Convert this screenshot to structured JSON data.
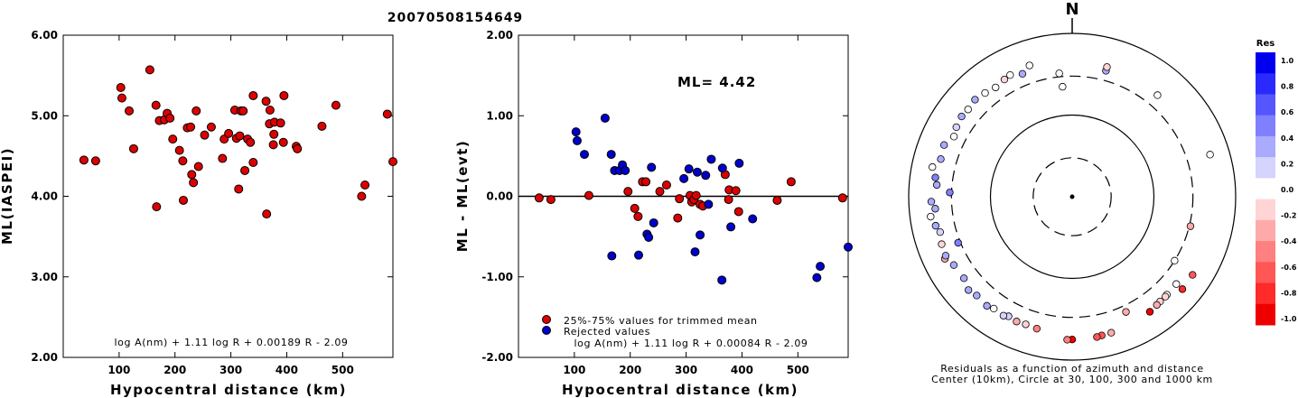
{
  "title": "20070508154649",
  "chart_data": [
    {
      "type": "scatter",
      "xlabel": "Hypocentral distance (km)",
      "ylabel": "ML(IASPEI)",
      "xlim": [
        0,
        590
      ],
      "ylim": [
        2.0,
        6.0
      ],
      "x_ticks": [
        100,
        200,
        300,
        400,
        500
      ],
      "y_ticks": [
        "2.00",
        "3.00",
        "4.00",
        "5.00",
        "6.00"
      ],
      "formula": "log A(nm) + 1.11 log R + 0.00189 R - 2.09",
      "series": [
        {
          "color": "#dd0000",
          "points": [
            [
              37,
              4.45
            ],
            [
              58,
              4.44
            ],
            [
              103,
              5.35
            ],
            [
              105,
              5.22
            ],
            [
              118,
              5.06
            ],
            [
              126,
              4.59
            ],
            [
              155,
              5.57
            ],
            [
              167,
              3.87
            ],
            [
              166,
              5.13
            ],
            [
              172,
              4.94
            ],
            [
              181,
              4.95
            ],
            [
              186,
              5.03
            ],
            [
              191,
              4.97
            ],
            [
              196,
              4.71
            ],
            [
              208,
              4.57
            ],
            [
              214,
              4.44
            ],
            [
              215,
              3.95
            ],
            [
              222,
              4.85
            ],
            [
              228,
              4.86
            ],
            [
              230,
              4.27
            ],
            [
              233,
              4.17
            ],
            [
              238,
              5.06
            ],
            [
              242,
              4.37
            ],
            [
              253,
              4.76
            ],
            [
              265,
              4.86
            ],
            [
              285,
              4.47
            ],
            [
              288,
              4.71
            ],
            [
              296,
              4.78
            ],
            [
              307,
              5.07
            ],
            [
              310,
              4.72
            ],
            [
              314,
              4.09
            ],
            [
              316,
              4.75
            ],
            [
              318,
              5.06
            ],
            [
              322,
              5.06
            ],
            [
              325,
              4.32
            ],
            [
              330,
              4.71
            ],
            [
              335,
              4.67
            ],
            [
              340,
              4.42
            ],
            [
              340,
              5.25
            ],
            [
              363,
              5.18
            ],
            [
              364,
              3.78
            ],
            [
              369,
              4.9
            ],
            [
              370,
              5.07
            ],
            [
              376,
              4.64
            ],
            [
              377,
              4.77
            ],
            [
              378,
              4.92
            ],
            [
              389,
              4.91
            ],
            [
              394,
              4.67
            ],
            [
              395,
              5.25
            ],
            [
              417,
              4.62
            ],
            [
              419,
              4.59
            ],
            [
              463,
              4.87
            ],
            [
              488,
              5.13
            ],
            [
              534,
              4.0
            ],
            [
              540,
              4.14
            ],
            [
              580,
              5.02
            ],
            [
              590,
              4.43
            ]
          ]
        }
      ]
    },
    {
      "type": "scatter",
      "xlabel": "Hypocentral distance (km)",
      "ylabel": "ML - ML(evt)",
      "xlim": [
        0,
        590
      ],
      "ylim": [
        -2.0,
        2.0
      ],
      "x_ticks": [
        100,
        200,
        300,
        400,
        500
      ],
      "y_ticks": [
        "-2.00",
        "-1.00",
        "0.00",
        "1.00",
        "2.00"
      ],
      "annotation": "ML= 4.42",
      "reference_line": 0.0,
      "formula": "log A(nm) + 1.11 log R + 0.00084 R - 2.09",
      "series": [
        {
          "name": "25%-75% values for trimmed mean",
          "color": "#dd0000",
          "points": [
            [
              37,
              -0.02
            ],
            [
              58,
              -0.04
            ],
            [
              126,
              0.01
            ],
            [
              196,
              0.06
            ],
            [
              208,
              -0.15
            ],
            [
              214,
              -0.25
            ],
            [
              222,
              0.18
            ],
            [
              228,
              0.18
            ],
            [
              253,
              0.06
            ],
            [
              265,
              0.14
            ],
            [
              285,
              -0.27
            ],
            [
              288,
              -0.03
            ],
            [
              307,
              0.01
            ],
            [
              310,
              -0.07
            ],
            [
              314,
              -0.04
            ],
            [
              318,
              0.01
            ],
            [
              325,
              -0.1
            ],
            [
              330,
              -0.12
            ],
            [
              370,
              0.27
            ],
            [
              376,
              -0.04
            ],
            [
              377,
              0.08
            ],
            [
              389,
              0.07
            ],
            [
              394,
              -0.19
            ],
            [
              463,
              -0.05
            ],
            [
              488,
              0.18
            ],
            [
              580,
              -0.02
            ]
          ]
        },
        {
          "name": "Rejected values",
          "color": "#0000cc",
          "points": [
            [
              103,
              0.8
            ],
            [
              105,
              0.69
            ],
            [
              118,
              0.52
            ],
            [
              155,
              0.97
            ],
            [
              167,
              -0.74
            ],
            [
              166,
              0.52
            ],
            [
              172,
              0.32
            ],
            [
              181,
              0.32
            ],
            [
              186,
              0.39
            ],
            [
              191,
              0.32
            ],
            [
              215,
              -0.73
            ],
            [
              230,
              -0.47
            ],
            [
              233,
              -0.51
            ],
            [
              238,
              0.36
            ],
            [
              242,
              -0.33
            ],
            [
              296,
              0.22
            ],
            [
              305,
              0.34
            ],
            [
              316,
              -0.69
            ],
            [
              320,
              0.3
            ],
            [
              325,
              -0.48
            ],
            [
              335,
              0.26
            ],
            [
              340,
              -0.1
            ],
            [
              345,
              0.46
            ],
            [
              364,
              -1.04
            ],
            [
              365,
              0.35
            ],
            [
              380,
              -0.38
            ],
            [
              395,
              0.41
            ],
            [
              419,
              -0.28
            ],
            [
              534,
              -1.01
            ],
            [
              540,
              -0.87
            ],
            [
              590,
              -0.63
            ]
          ]
        }
      ]
    },
    {
      "type": "scatter",
      "subtype": "polar",
      "north_label": "N",
      "circle_radii_km": [
        30,
        100,
        300,
        1000
      ],
      "caption_line1": "Residuals as a function of azimuth and distance",
      "caption_line2": "Center (10km), Circle at 30, 100, 300 and 1000 km",
      "colorbar_title": "Res",
      "colorbar_ticks": [
        "1.0",
        "0.8",
        "0.6",
        "0.4",
        "0.2",
        "0.0",
        "-0.2",
        "-0.4",
        "-0.6",
        "-0.8",
        "-1.0"
      ],
      "colorbar_colors": [
        "#0000ee",
        "#2a2aff",
        "#5656ff",
        "#8080ff",
        "#aaaaff",
        "#d4d4ff",
        "#ffffff",
        "#ffd4d4",
        "#ffaaaa",
        "#ff8080",
        "#ff5656",
        "#ff2a2a",
        "#ee0000"
      ],
      "note": "Each station: azimuth (degrees clockwise from north), hypocentral distance (km) and magnitude residual (ML - ML(evt)).",
      "stations": [
        {
          "az": 15,
          "dist": 395,
          "res": 0.41
        },
        {
          "az": 15,
          "dist": 440,
          "res": -0.19
        },
        {
          "az": 40,
          "dist": 420,
          "res": -0.02
        },
        {
          "az": 73,
          "dist": 580,
          "res": -0.02
        },
        {
          "az": 104,
          "dist": 310,
          "res": -0.27
        },
        {
          "az": 122,
          "dist": 300,
          "res": 0.01
        },
        {
          "az": 123,
          "dist": 570,
          "res": -0.63
        },
        {
          "az": 130,
          "dist": 460,
          "res": 0.01
        },
        {
          "az": 130,
          "dist": 575,
          "res": -0.87
        },
        {
          "az": 136,
          "dist": 465,
          "res": -0.07
        },
        {
          "az": 137,
          "dist": 470,
          "res": -0.12
        },
        {
          "az": 140,
          "dist": 472,
          "res": -0.1
        },
        {
          "az": 142,
          "dist": 480,
          "res": -0.25
        },
        {
          "az": 146,
          "dist": 500,
          "res": -1.01
        },
        {
          "az": 155,
          "dist": 360,
          "res": -0.38
        },
        {
          "az": 164,
          "dist": 540,
          "res": -0.27
        },
        {
          "az": 168,
          "dist": 545,
          "res": -0.74
        },
        {
          "az": 170,
          "dist": 555,
          "res": -0.73
        },
        {
          "az": 180,
          "dist": 560,
          "res": -1.04
        },
        {
          "az": 182,
          "dist": 565,
          "res": -0.48
        },
        {
          "az": 195,
          "dist": 470,
          "res": -0.51
        },
        {
          "az": 200,
          "dist": 460,
          "res": -0.15
        },
        {
          "az": 204,
          "dist": 470,
          "res": -0.25
        },
        {
          "az": 208,
          "dist": 455,
          "res": 0.18
        },
        {
          "az": 210,
          "dist": 480,
          "res": 0.18
        },
        {
          "az": 215,
          "dist": 470,
          "res": 0.06
        },
        {
          "az": 218,
          "dist": 495,
          "res": 0.33
        },
        {
          "az": 224,
          "dist": 480,
          "res": 0.32
        },
        {
          "az": 228,
          "dist": 510,
          "res": 0.36
        },
        {
          "az": 233,
          "dist": 455,
          "res": 0.3
        },
        {
          "az": 240,
          "dist": 470,
          "res": 0.32
        },
        {
          "az": 244,
          "dist": 540,
          "res": -0.27
        },
        {
          "az": 245,
          "dist": 510,
          "res": 0.26
        },
        {
          "az": 248,
          "dist": 320,
          "res": 0.52
        },
        {
          "az": 250,
          "dist": 500,
          "res": -0.14
        },
        {
          "az": 255,
          "dist": 470,
          "res": 0.22
        },
        {
          "az": 258,
          "dist": 510,
          "res": 0.39
        },
        {
          "az": 262,
          "dist": 560,
          "res": 0.01
        },
        {
          "az": 265,
          "dist": 480,
          "res": 0.34
        },
        {
          "az": 268,
          "dist": 530,
          "res": 0.32
        },
        {
          "az": 272,
          "dist": 315,
          "res": 0.52
        },
        {
          "az": 275,
          "dist": 460,
          "res": 0.39
        },
        {
          "az": 278,
          "dist": 490,
          "res": 0.46
        },
        {
          "az": 282,
          "dist": 560,
          "res": 0.01
        },
        {
          "az": 286,
          "dist": 470,
          "res": 0.35
        },
        {
          "az": 292,
          "dist": 490,
          "res": 0.32
        },
        {
          "az": 297,
          "dist": 420,
          "res": 0.02
        },
        {
          "az": 301,
          "dist": 450,
          "res": 0.22
        },
        {
          "az": 306,
          "dist": 470,
          "res": 0.36
        },
        {
          "az": 310,
          "dist": 460,
          "res": 0.01
        },
        {
          "az": 315,
          "dist": 480,
          "res": 0.34
        },
        {
          "az": 320,
          "dist": 455,
          "res": 0.06
        },
        {
          "az": 325,
          "dist": 430,
          "res": -0.02
        },
        {
          "az": 330,
          "dist": 455,
          "res": -0.15
        },
        {
          "az": 333,
          "dist": 470,
          "res": 0.01
        },
        {
          "az": 338,
          "dist": 420,
          "res": 0.36
        },
        {
          "az": 342,
          "dist": 490,
          "res": -0.05
        },
        {
          "az": 354,
          "dist": 330,
          "res": 0.01
        },
        {
          "az": 355,
          "dist": 225,
          "res": 0.01
        }
      ]
    }
  ]
}
